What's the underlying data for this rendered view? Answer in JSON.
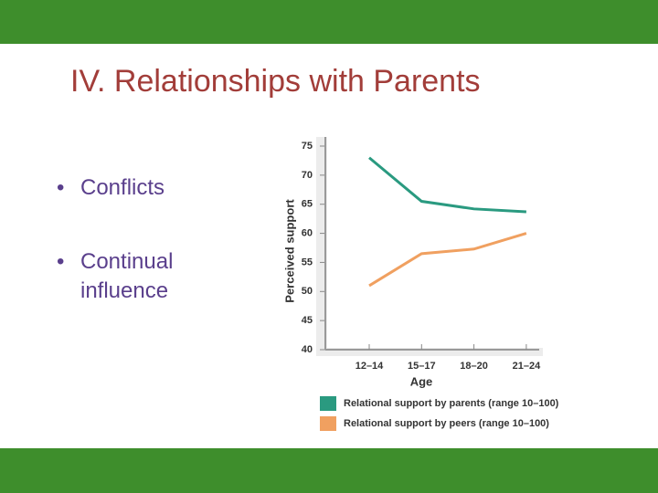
{
  "slide": {
    "title": "IV.  Relationships with Parents",
    "bullets": [
      "Conflicts",
      "Continual influence"
    ]
  },
  "chart_data": {
    "type": "line",
    "x_label": "Age",
    "y_label": "Perceived support",
    "categories": [
      "12–14",
      "15–17",
      "18–20",
      "21–24"
    ],
    "series": [
      {
        "name": "Relational support by parents (range 10–100)",
        "color": "#2a9a80",
        "values": [
          73,
          65.5,
          64.2,
          63.7
        ]
      },
      {
        "name": "Relational support by peers (range 10–100)",
        "color": "#f0a060",
        "values": [
          51,
          56.5,
          57.3,
          60
        ]
      }
    ],
    "ylim": [
      40,
      75
    ],
    "yticks": [
      40,
      45,
      50,
      55,
      60,
      65,
      70,
      75
    ],
    "legend": "bottom"
  }
}
